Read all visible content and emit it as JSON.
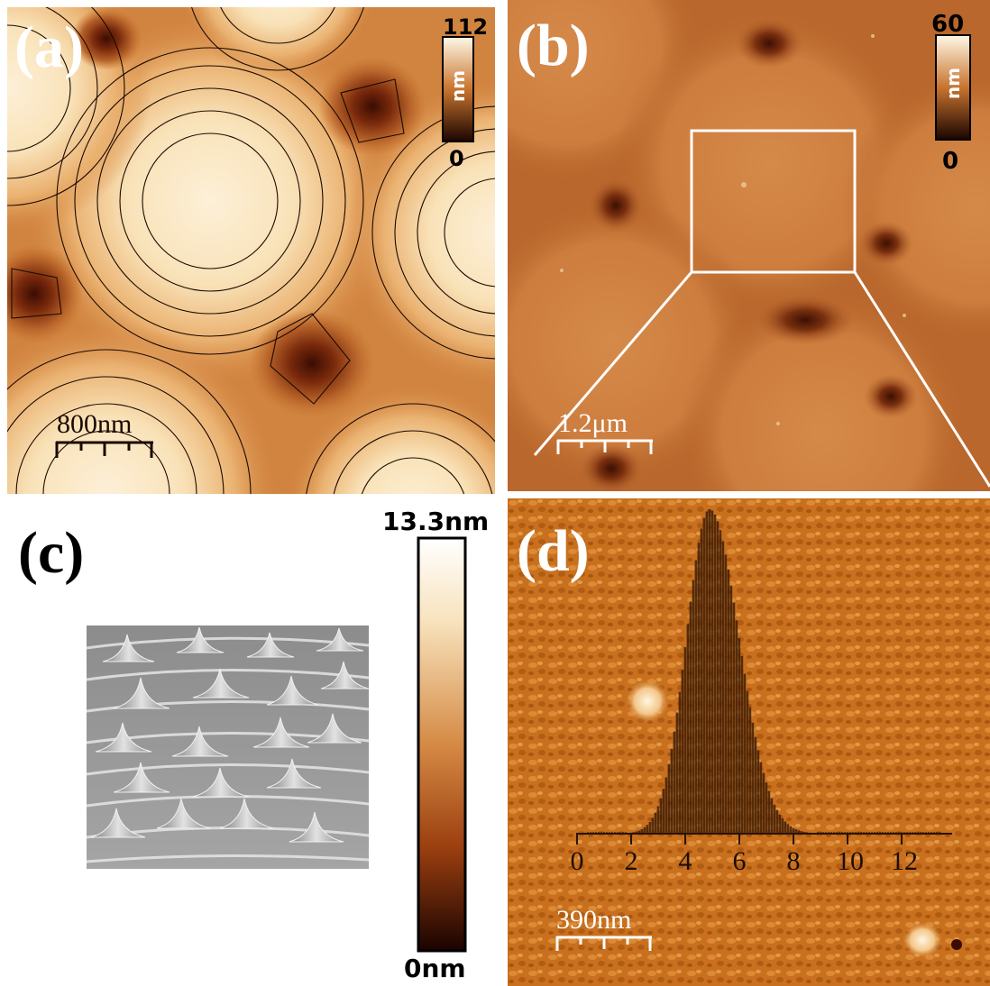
{
  "panels": {
    "a": {
      "label": "(a)",
      "colorbar": {
        "max": "112",
        "min": "0",
        "unit": "nm"
      },
      "scalebar": "800nm"
    },
    "b": {
      "label": "(b)",
      "colorbar": {
        "max": "60",
        "min": "0",
        "unit": "nm"
      },
      "scalebar": "1.2μm"
    },
    "c": {
      "label": "(c)",
      "colorbar": {
        "max": "13.3nm",
        "min": "0nm"
      }
    },
    "d": {
      "label": "(d)",
      "scalebar": "390nm",
      "histogram_axis": {
        "ticks": [
          "0",
          "2",
          "4",
          "6",
          "8",
          "10",
          "12"
        ]
      }
    }
  },
  "colors": {
    "afm_dark": "#2a0a00",
    "afm_mid": "#c8742e",
    "afm_light": "#fff8e6",
    "sem_gray": "#9a9a9a"
  }
}
